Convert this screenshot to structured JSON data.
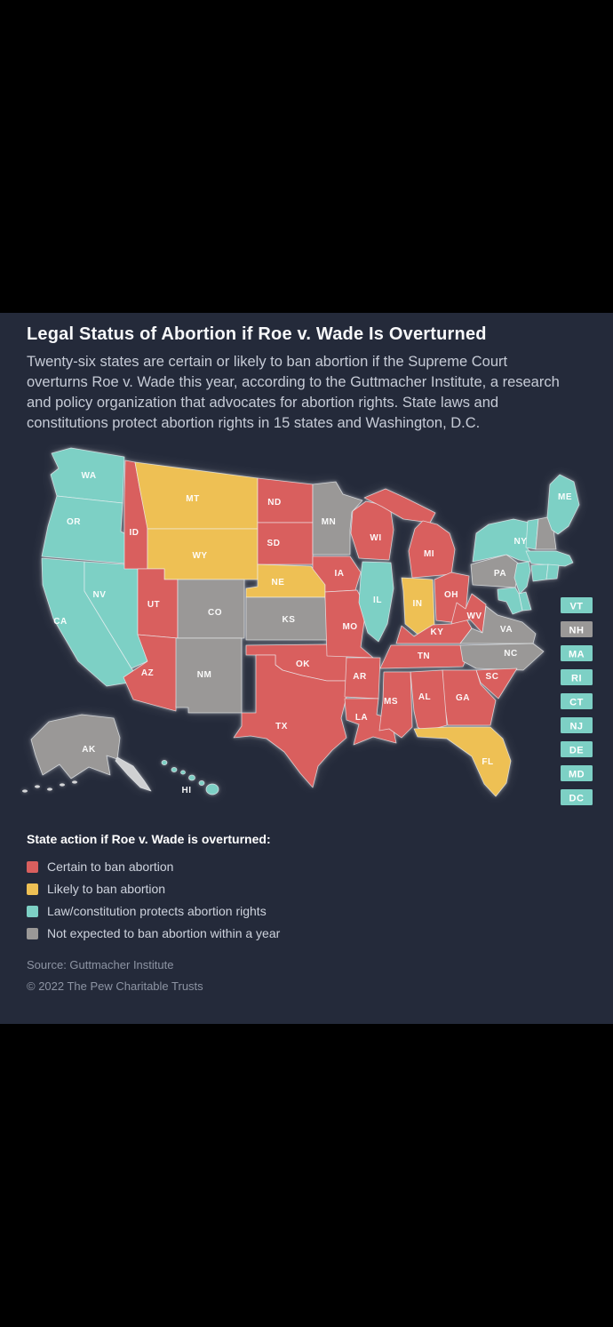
{
  "title": "Legal Status of Abortion if Roe v. Wade Is Overturned",
  "subtitle": "Twenty-six states are certain or likely to ban abortion if the Supreme Court overturns Roe v. Wade this year, according to the Guttmacher Institute, a research and policy organization that advocates for abortion rights. State laws and constitutions protect abortion rights in 15 states and Washington, D.C.",
  "legend": {
    "title": "State action if Roe v. Wade is overturned:"
  },
  "source": "Source: Guttmacher Institute",
  "copyright": "© 2022 The Pew Charitable Trusts",
  "colors": {
    "card_background": "#242a3a",
    "page_background": "#000000",
    "certain": "#d95f5e",
    "likely": "#eec054",
    "protects": "#7dd0c5",
    "not_expected": "#9a9897"
  },
  "map": {
    "side_labels": [
      "VT",
      "NH",
      "MA",
      "RI",
      "CT",
      "NJ",
      "DE",
      "MD",
      "DC"
    ]
  },
  "chart_data": {
    "type": "choropleth",
    "title": "Legal Status of Abortion if Roe v. Wade Is Overturned",
    "legend_title": "State action if Roe v. Wade is overturned:",
    "legend_position": "bottom-left",
    "categories": [
      {
        "key": "certain",
        "label": "Certain to ban abortion",
        "color": "#d95f5e",
        "states": [
          "ID",
          "UT",
          "AZ",
          "ND",
          "SD",
          "WI",
          "MI",
          "IA",
          "MO",
          "OK",
          "TX",
          "AR",
          "LA",
          "MS",
          "AL",
          "GA",
          "SC",
          "TN",
          "KY",
          "WV",
          "OH"
        ]
      },
      {
        "key": "likely",
        "label": "Likely to ban abortion",
        "color": "#eec054",
        "states": [
          "MT",
          "WY",
          "NE",
          "IN",
          "FL"
        ]
      },
      {
        "key": "protects",
        "label": "Law/constitution protects abortion rights",
        "color": "#7dd0c5",
        "states": [
          "WA",
          "OR",
          "CA",
          "NV",
          "IL",
          "HI",
          "ME",
          "NY",
          "VT",
          "MA",
          "RI",
          "CT",
          "NJ",
          "DE",
          "MD",
          "DC"
        ]
      },
      {
        "key": "not_expected",
        "label": "Not expected to ban abortion within a year",
        "color": "#9a9897",
        "states": [
          "AK",
          "MN",
          "KS",
          "CO",
          "NM",
          "PA",
          "VA",
          "NC",
          "NH"
        ]
      }
    ]
  }
}
